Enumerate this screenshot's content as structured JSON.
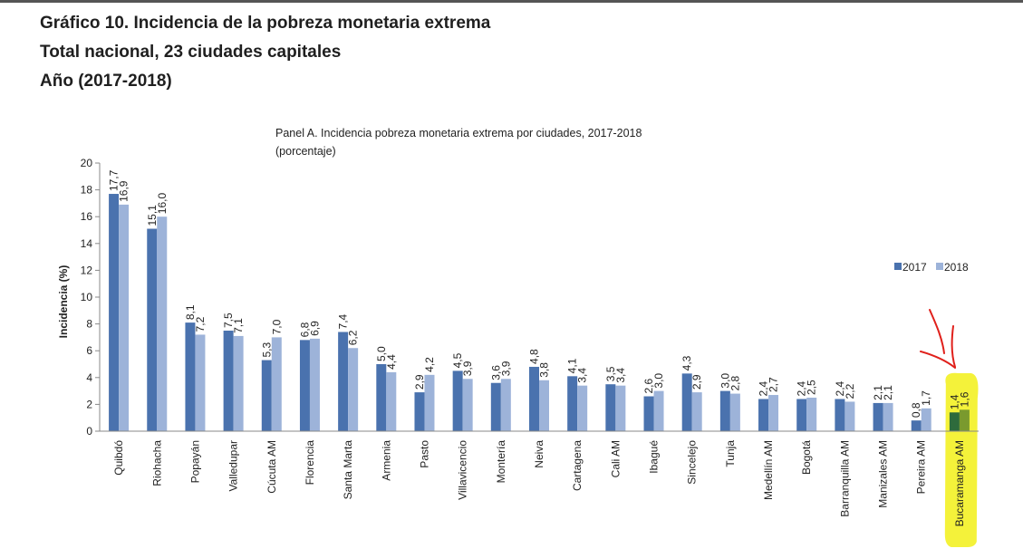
{
  "header": {
    "line1": "Gráfico 10. Incidencia de la pobreza monetaria extrema",
    "line2": "Total nacional, 23 ciudades capitales",
    "line3": "Año (2017-2018)"
  },
  "colors": {
    "s2017": "#4A72AE",
    "s2018": "#9DB3D9",
    "highlight": "#F4F23A",
    "highlight2017": "#2E6B3C",
    "highlight2018": "#7A9A2E",
    "annotation": "#E0201B"
  },
  "chart_data": {
    "type": "bar",
    "title": "Panel A. Incidencia pobreza monetaria extrema por ciudades, 2017-2018",
    "subtitle": "(porcentaje)",
    "xlabel": "",
    "ylabel": "Incidencia (%)",
    "ylim": [
      0,
      20
    ],
    "yticks": [
      "0",
      "2",
      "4",
      "6",
      "8",
      "10",
      "12",
      "14",
      "16",
      "18",
      "20"
    ],
    "legend_position": "right",
    "categories": [
      "Quibdó",
      "Riohacha",
      "Popayán",
      "Valledupar",
      "Cúcuta AM",
      "Florencia",
      "Santa Marta",
      "Armenia",
      "Pasto",
      "Villavicencio",
      "Montería",
      "Neiva",
      "Cartagena",
      "Cali AM",
      "Ibagué",
      "Sincelejo",
      "Tunja",
      "Medellín AM",
      "Bogotá",
      "Barranquilla AM",
      "Manizales AM",
      "Pereira AM",
      "Bucaramanga AM"
    ],
    "series": [
      {
        "name": "2017",
        "values": [
          17.7,
          15.1,
          8.1,
          7.5,
          5.3,
          6.8,
          7.4,
          5.0,
          2.9,
          4.5,
          3.6,
          4.8,
          4.1,
          3.5,
          2.6,
          4.3,
          3.0,
          2.4,
          2.4,
          2.4,
          2.1,
          0.8,
          1.4
        ],
        "labels": [
          "17,7",
          "15,1",
          "8,1",
          "7,5",
          "5,3",
          "6,8",
          "7,4",
          "5,0",
          "2,9",
          "4,5",
          "3,6",
          "4,8",
          "4,1",
          "3,5",
          "2,6",
          "4,3",
          "3,0",
          "2,4",
          "2,4",
          "2,4",
          "2,1",
          "0,8",
          "1,4"
        ]
      },
      {
        "name": "2018",
        "values": [
          16.9,
          16.0,
          7.2,
          7.1,
          7.0,
          6.9,
          6.2,
          4.4,
          4.2,
          3.9,
          3.9,
          3.8,
          3.4,
          3.4,
          3.0,
          2.9,
          2.8,
          2.7,
          2.5,
          2.2,
          2.1,
          1.7,
          1.6
        ],
        "labels": [
          "16,9",
          "16,0",
          "7,2",
          "7,1",
          "7,0",
          "6,9",
          "6,2",
          "4,4",
          "4,2",
          "3,9",
          "3,9",
          "3,8",
          "3,4",
          "3,4",
          "3,0",
          "2,9",
          "2,8",
          "2,7",
          "2,5",
          "2,2",
          "2,1",
          "1,7",
          "1,6"
        ]
      }
    ],
    "highlighted_category": "Bucaramanga AM"
  }
}
